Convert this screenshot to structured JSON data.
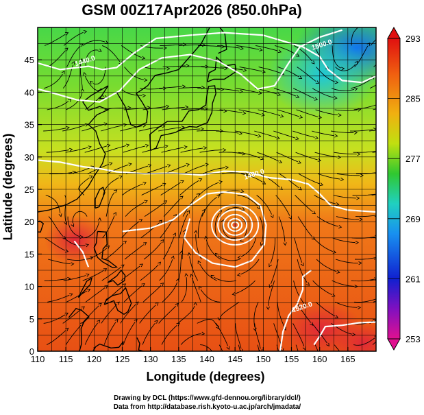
{
  "title": "GSM 00Z17Apr2026 (850.0hPa)",
  "x_axis": {
    "label": "Longitude (degrees)",
    "range": [
      110,
      170
    ],
    "ticks": [
      110,
      115,
      120,
      125,
      130,
      135,
      140,
      145,
      150,
      155,
      160,
      165
    ]
  },
  "y_axis": {
    "label": "Latitude  (degrees)",
    "range": [
      0,
      50
    ],
    "ticks": [
      0,
      5,
      10,
      15,
      20,
      25,
      30,
      35,
      40,
      45
    ]
  },
  "colorbar": {
    "range": [
      253,
      293
    ],
    "ticks": [
      293,
      285,
      277,
      269,
      261,
      253
    ],
    "colors": [
      "#e01080",
      "#6a00c0",
      "#1020e0",
      "#1890f0",
      "#20d0d0",
      "#30d040",
      "#b8e010",
      "#f0c010",
      "#f07010",
      "#e02010"
    ]
  },
  "contour_labels": [
    {
      "text": "1440.0",
      "lon": 118.5,
      "lat": 44.5
    },
    {
      "text": "1500.0",
      "lon": 160.5,
      "lat": 47.0
    },
    {
      "text": "1480.0",
      "lon": 148.5,
      "lat": 27.0
    },
    {
      "text": "1520.0",
      "lon": 157.0,
      "lat": 6.5
    }
  ],
  "credits": {
    "line1": "Drawing by DCL (https://www.gfd-dennou.org/library/dcl/)",
    "line2": "Data from http://database.rish.kyoto-u.ac.jp/arch/jmadata/"
  }
}
